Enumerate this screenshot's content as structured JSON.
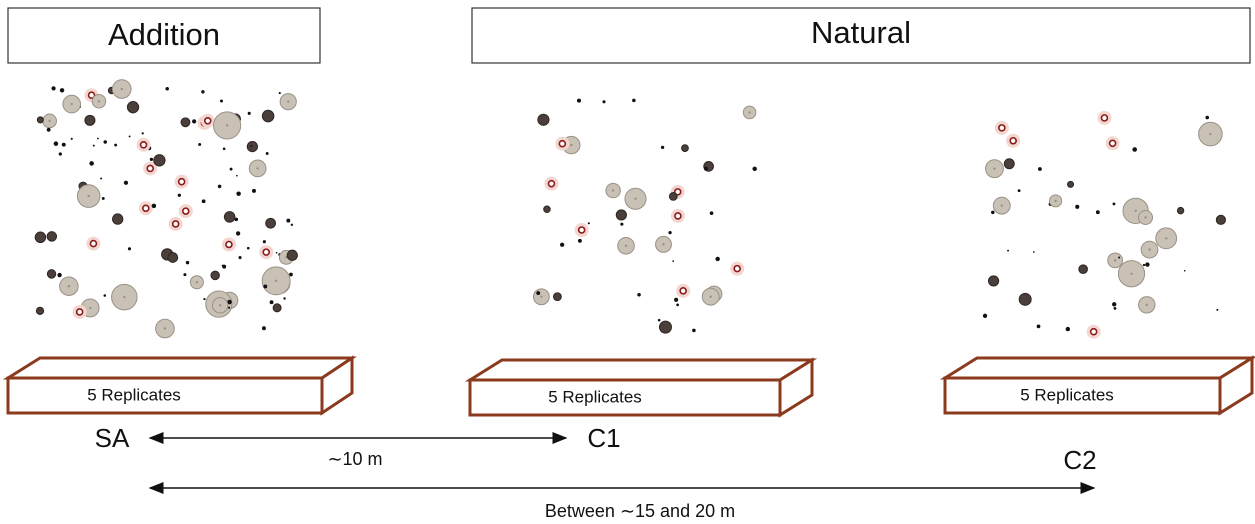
{
  "headers": [
    {
      "label": "Addition"
    },
    {
      "label": "Natural"
    }
  ],
  "plots": [
    {
      "label": "SA",
      "box_label": "5 Replicates"
    },
    {
      "label": "C1",
      "box_label": "5 Replicates"
    },
    {
      "label": "C2",
      "box_label": "5 Replicates"
    }
  ],
  "distances": [
    {
      "label": "∼10 m"
    },
    {
      "label": "Between ∼15 and 20 m"
    }
  ]
}
